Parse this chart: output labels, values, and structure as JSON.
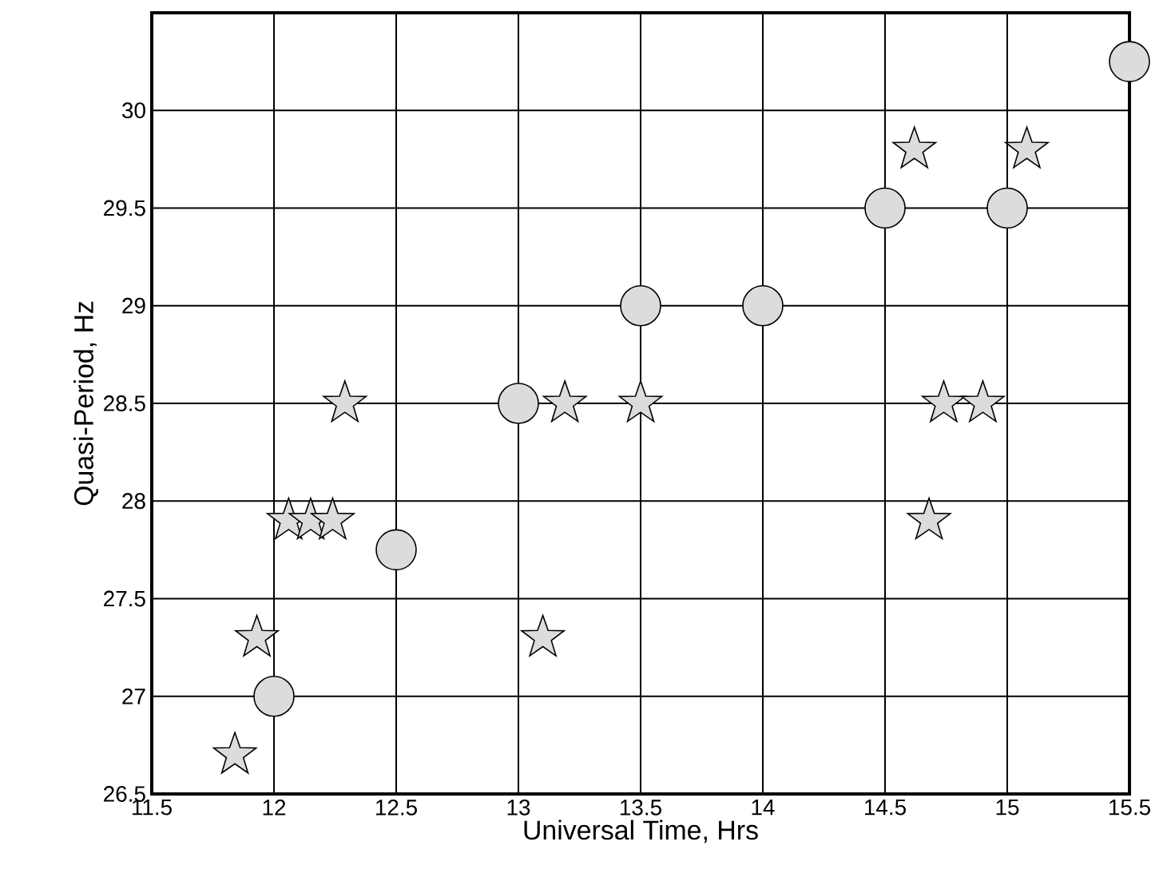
{
  "chart_data": {
    "type": "scatter",
    "xlabel": "Universal Time, Hrs",
    "ylabel": "Quasi-Period, Hz",
    "xlim": [
      11.5,
      15.5
    ],
    "ylim": [
      26.5,
      30.5
    ],
    "xticks": [
      11.5,
      12,
      12.5,
      13,
      13.5,
      14,
      14.5,
      15,
      15.5
    ],
    "yticks": [
      26.5,
      27,
      27.5,
      28,
      28.5,
      29,
      29.5,
      30
    ],
    "grid": true,
    "series": [
      {
        "marker": "circle",
        "color": "#dcdcdc",
        "x": [
          12,
          12.5,
          13,
          13.5,
          14,
          14.5,
          15,
          15.5
        ],
        "values": [
          27,
          27.75,
          28.5,
          29,
          29,
          29.5,
          29.5,
          30.25
        ]
      },
      {
        "marker": "star",
        "color": "#dcdcdc",
        "x": [
          11.84,
          11.93,
          12.06,
          12.15,
          12.24,
          12.29,
          13.1,
          13.19,
          13.5,
          14.62,
          15.08,
          14.74,
          14.9,
          14.68
        ],
        "values": [
          26.7,
          27.3,
          27.9,
          27.9,
          27.9,
          28.5,
          27.3,
          28.5,
          28.5,
          29.8,
          29.8,
          28.5,
          28.5,
          27.9
        ]
      }
    ]
  }
}
